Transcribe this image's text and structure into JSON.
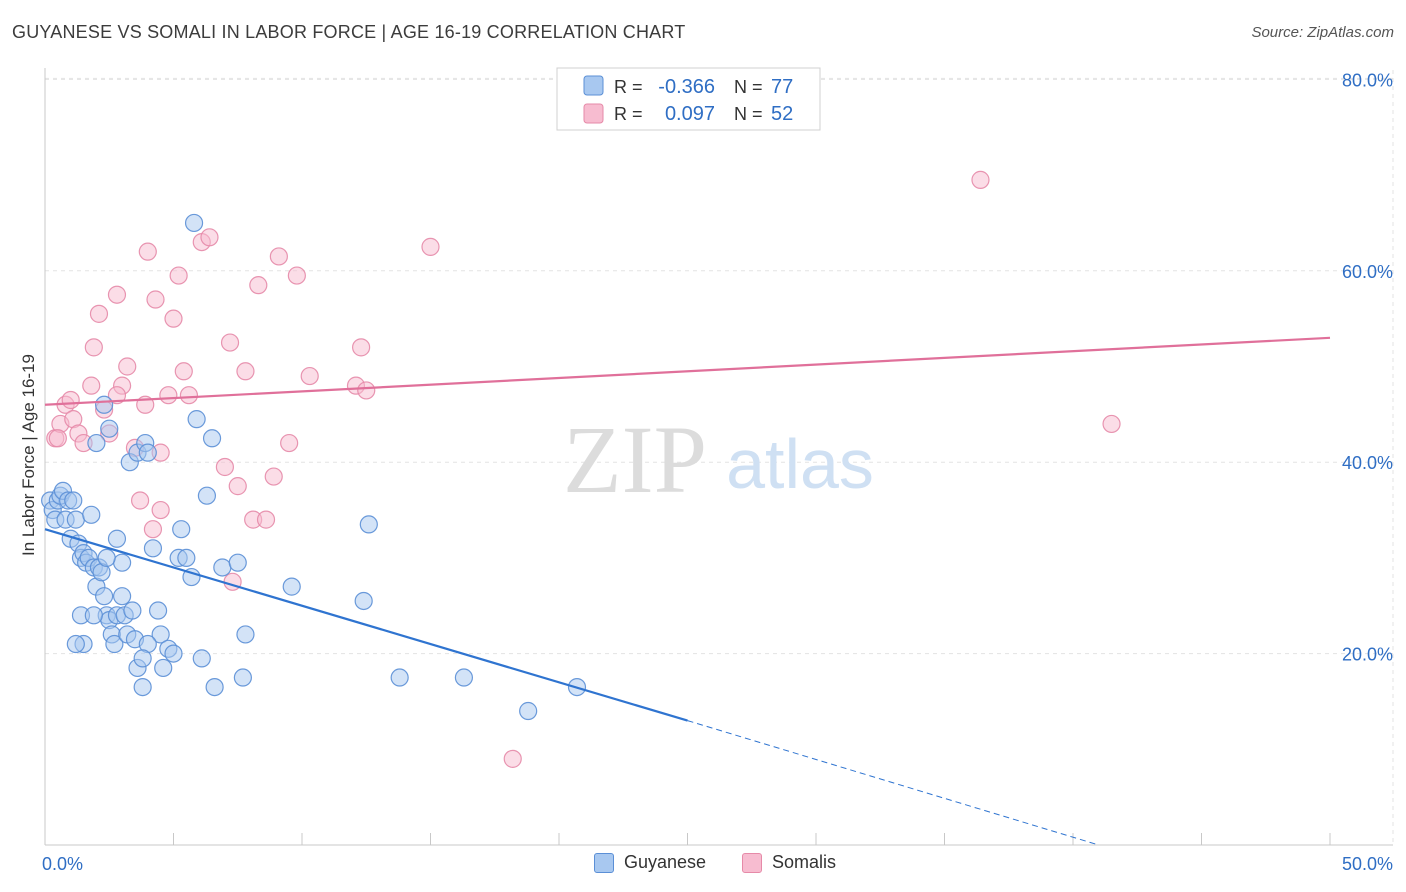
{
  "title": "GUYANESE VS SOMALI IN LABOR FORCE | AGE 16-19 CORRELATION CHART",
  "source": "Source: ZipAtlas.com",
  "watermark": {
    "zip": "ZIP",
    "atlas": "atlas"
  },
  "legend_top": [
    {
      "r_label": "R =",
      "r_value": "-0.366",
      "n_label": "N =",
      "n_value": "77"
    },
    {
      "r_label": "R =",
      "r_value": "0.097",
      "n_label": "N =",
      "n_value": "52"
    }
  ],
  "legend_bottom": [
    "Guyanese",
    "Somalis"
  ],
  "colors": {
    "guyanese_fill": "#a8c8f0",
    "guyanese_stroke": "#5b8fd6",
    "guyanese_line": "#2f74d0",
    "somali_fill": "#f7bcd0",
    "somali_stroke": "#e68aa8",
    "somali_line": "#e0709a",
    "value_text": "#2f6ec4",
    "grid": "#e3e3e3"
  },
  "chart_data": {
    "type": "scatter",
    "title": "GUYANESE VS SOMALI IN LABOR FORCE | AGE 16-19 CORRELATION CHART",
    "ylabel": "In Labor Force | Age 16-19",
    "xlabel": "",
    "xlim": [
      0,
      50
    ],
    "ylim": [
      0,
      80
    ],
    "x_tick_labels": [
      "0.0%",
      "50.0%"
    ],
    "y_ticks": [
      20,
      40,
      60,
      80
    ],
    "y_tick_labels": [
      "20.0%",
      "40.0%",
      "60.0%",
      "80.0%"
    ],
    "grid": true,
    "series": [
      {
        "name": "Guyanese",
        "r": -0.366,
        "n": 77,
        "trend": {
          "x0": 0,
          "y0": 33,
          "x1": 25,
          "y1": 13,
          "dash_x1": 41,
          "dash_y1": 0
        },
        "points": [
          [
            0.2,
            36
          ],
          [
            0.3,
            35
          ],
          [
            0.4,
            34
          ],
          [
            0.5,
            36
          ],
          [
            0.6,
            36.5
          ],
          [
            0.7,
            37
          ],
          [
            0.8,
            34
          ],
          [
            0.9,
            36
          ],
          [
            1.0,
            32
          ],
          [
            1.1,
            36
          ],
          [
            1.2,
            34
          ],
          [
            1.3,
            31.5
          ],
          [
            1.4,
            30
          ],
          [
            1.5,
            30.5
          ],
          [
            1.6,
            29.5
          ],
          [
            1.7,
            30
          ],
          [
            1.8,
            34.5
          ],
          [
            1.9,
            29
          ],
          [
            2.0,
            27
          ],
          [
            2.1,
            29
          ],
          [
            2.2,
            28.5
          ],
          [
            2.3,
            26
          ],
          [
            2.4,
            24
          ],
          [
            2.5,
            23.5
          ],
          [
            2.6,
            22
          ],
          [
            2.7,
            21
          ],
          [
            2.8,
            24
          ],
          [
            3.0,
            26
          ],
          [
            3.1,
            24
          ],
          [
            3.2,
            22
          ],
          [
            3.4,
            24.5
          ],
          [
            3.5,
            21.5
          ],
          [
            3.6,
            18.5
          ],
          [
            3.8,
            16.5
          ],
          [
            1.4,
            24
          ],
          [
            1.5,
            21
          ],
          [
            1.9,
            24
          ],
          [
            2.0,
            42
          ],
          [
            2.3,
            46
          ],
          [
            2.5,
            43.5
          ],
          [
            2.8,
            32
          ],
          [
            3.0,
            29.5
          ],
          [
            3.3,
            40
          ],
          [
            3.6,
            41
          ],
          [
            3.9,
            42
          ],
          [
            4.0,
            41
          ],
          [
            4.2,
            31
          ],
          [
            4.4,
            24.5
          ],
          [
            4.5,
            22
          ],
          [
            4.6,
            18.5
          ],
          [
            4.8,
            20.5
          ],
          [
            5.0,
            20
          ],
          [
            5.2,
            30
          ],
          [
            5.3,
            33
          ],
          [
            5.5,
            30
          ],
          [
            5.7,
            28
          ],
          [
            5.8,
            65
          ],
          [
            5.9,
            44.5
          ],
          [
            6.1,
            19.5
          ],
          [
            6.3,
            36.5
          ],
          [
            6.5,
            42.5
          ],
          [
            6.6,
            16.5
          ],
          [
            6.9,
            29
          ],
          [
            7.5,
            29.5
          ],
          [
            7.7,
            17.5
          ],
          [
            7.8,
            22
          ],
          [
            9.6,
            27
          ],
          [
            12.4,
            25.5
          ],
          [
            12.6,
            33.5
          ],
          [
            13.8,
            17.5
          ],
          [
            16.3,
            17.5
          ],
          [
            18.8,
            14
          ],
          [
            20.7,
            16.5
          ],
          [
            4.0,
            21
          ],
          [
            3.8,
            19.5
          ],
          [
            1.2,
            21
          ],
          [
            2.4,
            30
          ]
        ]
      },
      {
        "name": "Somalis",
        "r": 0.097,
        "n": 52,
        "trend": {
          "x0": 0,
          "y0": 46,
          "x1": 50,
          "y1": 53
        },
        "points": [
          [
            0.4,
            42.5
          ],
          [
            0.6,
            44
          ],
          [
            0.8,
            46
          ],
          [
            1.0,
            46.5
          ],
          [
            1.1,
            44.5
          ],
          [
            1.3,
            43
          ],
          [
            1.5,
            42
          ],
          [
            1.8,
            48
          ],
          [
            1.9,
            52
          ],
          [
            2.1,
            55.5
          ],
          [
            2.3,
            45.5
          ],
          [
            2.5,
            43
          ],
          [
            2.8,
            57.5
          ],
          [
            3.0,
            48
          ],
          [
            3.2,
            50
          ],
          [
            3.5,
            41.5
          ],
          [
            3.7,
            36
          ],
          [
            3.9,
            46
          ],
          [
            4.0,
            62
          ],
          [
            4.2,
            33
          ],
          [
            4.3,
            57
          ],
          [
            4.5,
            35
          ],
          [
            4.8,
            47
          ],
          [
            5.0,
            55
          ],
          [
            5.2,
            59.5
          ],
          [
            5.4,
            49.5
          ],
          [
            5.6,
            47
          ],
          [
            6.1,
            63
          ],
          [
            6.4,
            63.5
          ],
          [
            7.0,
            39.5
          ],
          [
            7.2,
            52.5
          ],
          [
            7.5,
            37.5
          ],
          [
            7.8,
            49.5
          ],
          [
            8.1,
            34
          ],
          [
            8.3,
            58.5
          ],
          [
            8.6,
            34
          ],
          [
            8.9,
            38.5
          ],
          [
            9.1,
            61.5
          ],
          [
            9.5,
            42
          ],
          [
            9.8,
            59.5
          ],
          [
            10.3,
            49
          ],
          [
            12.1,
            48
          ],
          [
            12.3,
            52
          ],
          [
            12.5,
            47.5
          ],
          [
            15.0,
            62.5
          ],
          [
            7.3,
            27.5
          ],
          [
            2.8,
            47
          ],
          [
            4.5,
            41
          ],
          [
            18.2,
            9
          ],
          [
            36.4,
            69.5
          ],
          [
            41.5,
            44
          ],
          [
            0.5,
            42.5
          ]
        ]
      }
    ]
  }
}
